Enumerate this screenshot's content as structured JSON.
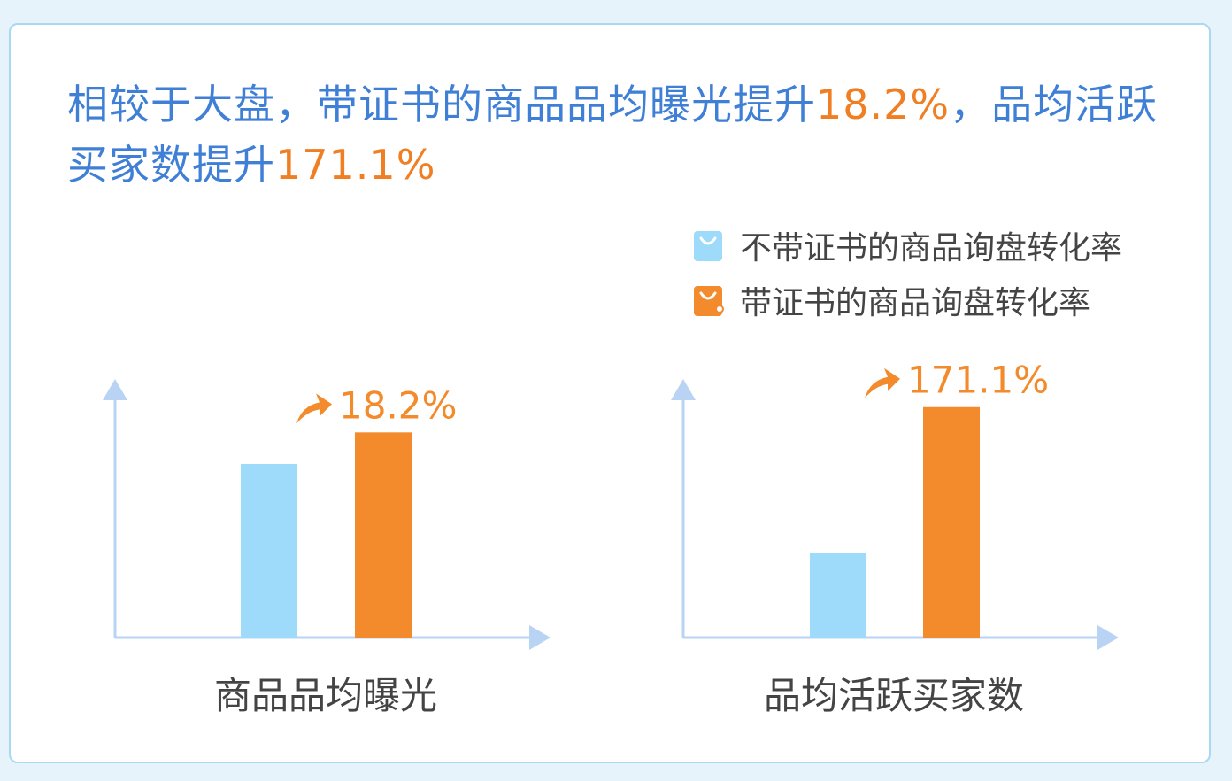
{
  "headline": {
    "line1_part1": "相较于大盘，带证书的商品品均曝光提升",
    "line1_value": "18.2%",
    "line1_part2": "，品均活跃",
    "line2_part1": "买家数提升",
    "line2_value": "171.1%"
  },
  "legend": [
    {
      "label": "不带证书的商品询盘转化率",
      "color": "#9edbfb",
      "icon": "shopping-bag-icon"
    },
    {
      "label": "带证书的商品询盘转化率",
      "color": "#f38a2b",
      "icon": "shopping-bag-icon"
    }
  ],
  "colors": {
    "blue_text": "#3f7fd6",
    "orange": "#f38a2b",
    "light_blue": "#9edbfb",
    "axis": "#b9d3f4"
  },
  "chart_data": [
    {
      "type": "bar",
      "xlabel": "商品品均曝光",
      "series": [
        {
          "name": "不带证书的商品询盘转化率",
          "values": [
            1.0
          ]
        },
        {
          "name": "带证书的商品询盘转化率",
          "values": [
            1.182
          ]
        }
      ],
      "annotation": "18.2%",
      "annotation_icon": "up-arrow-icon"
    },
    {
      "type": "bar",
      "xlabel": "品均活跃买家数",
      "series": [
        {
          "name": "不带证书的商品询盘转化率",
          "values": [
            1.0
          ]
        },
        {
          "name": "带证书的商品询盘转化率",
          "values": [
            2.711
          ]
        }
      ],
      "annotation": "171.1%",
      "annotation_icon": "up-arrow-icon"
    }
  ]
}
